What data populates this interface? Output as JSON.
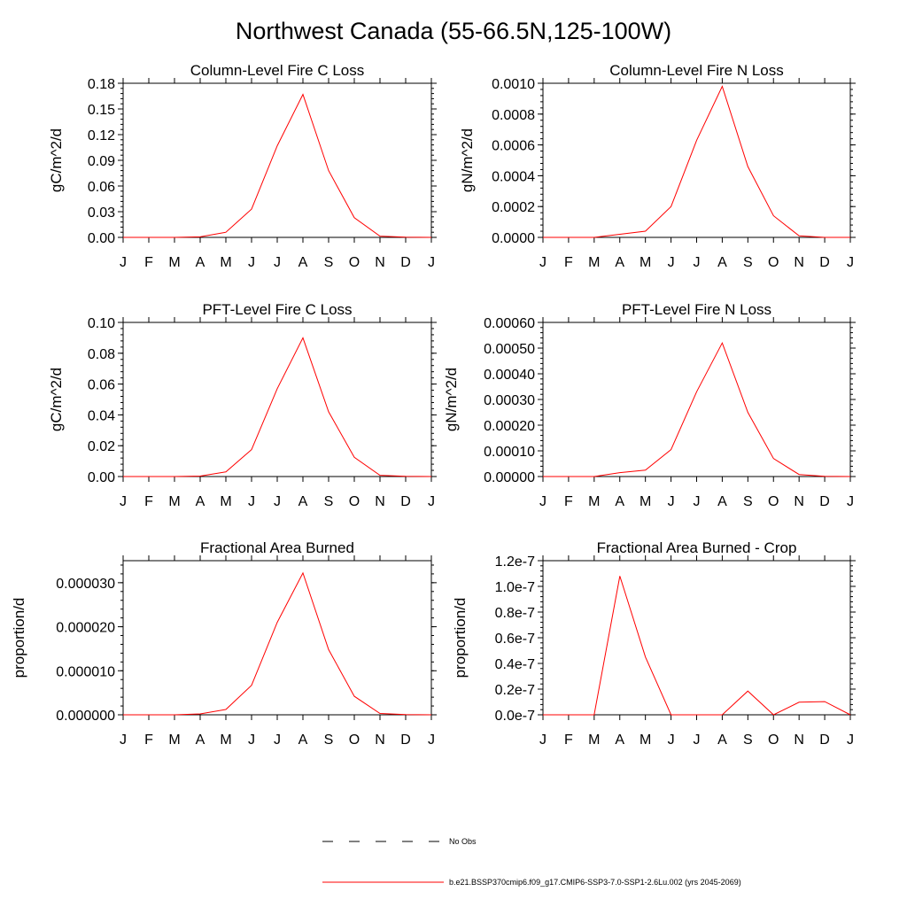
{
  "figure_title": "Northwest Canada (55-66.5N,125-100W)",
  "colors": {
    "model": "#ff0000",
    "obs": "#000000",
    "axis": "#000000"
  },
  "chart_data": [
    {
      "type": "line",
      "title": "Column-Level Fire C Loss",
      "ylabel": "gC/m^2/d",
      "ylim": [
        0,
        0.18
      ],
      "yticks": [
        0,
        0.03,
        0.06,
        0.09,
        0.12,
        0.15,
        0.18
      ],
      "ytick_labels": [
        "0.00",
        "0.03",
        "0.06",
        "0.09",
        "0.12",
        "0.15",
        "0.18"
      ],
      "x": [
        "J",
        "F",
        "M",
        "A",
        "M",
        "J",
        "J",
        "A",
        "S",
        "O",
        "N",
        "D",
        "J"
      ],
      "series": [
        {
          "values": [
            0,
            0,
            0,
            0.0006,
            0.006,
            0.033,
            0.107,
            0.167,
            0.078,
            0.023,
            0.0015,
            0.0002,
            0
          ]
        }
      ]
    },
    {
      "type": "line",
      "title": "Column-Level Fire N Loss",
      "ylabel": "gN/m^2/d",
      "ylim": [
        0,
        0.001
      ],
      "yticks": [
        0,
        0.0002,
        0.0004,
        0.0006,
        0.0008,
        0.001
      ],
      "ytick_labels": [
        "0.0000",
        "0.0002",
        "0.0004",
        "0.0006",
        "0.0008",
        "0.0010"
      ],
      "x": [
        "J",
        "F",
        "M",
        "A",
        "M",
        "J",
        "J",
        "A",
        "S",
        "O",
        "N",
        "D",
        "J"
      ],
      "series": [
        {
          "values": [
            0,
            0,
            0,
            2e-05,
            4e-05,
            0.0002,
            0.00063,
            0.00098,
            0.00046,
            0.00014,
            1e-05,
            0,
            0
          ]
        }
      ]
    },
    {
      "type": "line",
      "title": "PFT-Level Fire C Loss",
      "ylabel": "gC/m^2/d",
      "ylim": [
        0,
        0.1
      ],
      "yticks": [
        0,
        0.02,
        0.04,
        0.06,
        0.08,
        0.1
      ],
      "ytick_labels": [
        "0.00",
        "0.02",
        "0.04",
        "0.06",
        "0.08",
        "0.10"
      ],
      "x": [
        "J",
        "F",
        "M",
        "A",
        "M",
        "J",
        "J",
        "A",
        "S",
        "O",
        "N",
        "D",
        "J"
      ],
      "series": [
        {
          "values": [
            0,
            0,
            0,
            0.0003,
            0.003,
            0.0175,
            0.057,
            0.09,
            0.042,
            0.0125,
            0.0008,
            0.0001,
            0
          ]
        }
      ]
    },
    {
      "type": "line",
      "title": "PFT-Level Fire N Loss",
      "ylabel": "gN/m^2/d",
      "ylim": [
        0,
        0.0006
      ],
      "yticks": [
        0,
        0.0001,
        0.0002,
        0.0003,
        0.0004,
        0.0005,
        0.0006
      ],
      "ytick_labels": [
        "0.00000",
        "0.00010",
        "0.00020",
        "0.00030",
        "0.00040",
        "0.00050",
        "0.00060"
      ],
      "x": [
        "J",
        "F",
        "M",
        "A",
        "M",
        "J",
        "J",
        "A",
        "S",
        "O",
        "N",
        "D",
        "J"
      ],
      "series": [
        {
          "values": [
            0,
            0,
            0,
            1.5e-05,
            2.5e-05,
            0.000105,
            0.00033,
            0.00052,
            0.00025,
            7e-05,
            8e-06,
            1e-06,
            0
          ]
        }
      ]
    },
    {
      "type": "line",
      "title": "Fractional Area Burned",
      "ylabel": "proportion/d",
      "ylim": [
        0,
        3.5e-05
      ],
      "yticks": [
        0,
        1e-05,
        2e-05,
        3e-05
      ],
      "ytick_labels": [
        "0.000000",
        "0.000010",
        "0.000020",
        "0.000030"
      ],
      "x": [
        "J",
        "F",
        "M",
        "A",
        "M",
        "J",
        "J",
        "A",
        "S",
        "O",
        "N",
        "D",
        "J"
      ],
      "series": [
        {
          "values": [
            0,
            0,
            0,
            2e-07,
            1.2e-06,
            6.7e-06,
            2.1e-05,
            3.22e-05,
            1.48e-05,
            4.2e-06,
            3e-07,
            5e-08,
            0
          ]
        }
      ]
    },
    {
      "type": "line",
      "title": "Fractional Area Burned - Crop",
      "ylabel": "proportion/d",
      "ylim": [
        0,
        1.2e-07
      ],
      "yticks": [
        0,
        2e-08,
        4e-08,
        6e-08,
        8e-08,
        1e-07,
        1.2e-07
      ],
      "ytick_labels": [
        "0.0e-7",
        "0.2e-7",
        "0.4e-7",
        "0.6e-7",
        "0.8e-7",
        "1.0e-7",
        "1.2e-7"
      ],
      "x": [
        "J",
        "F",
        "M",
        "A",
        "M",
        "J",
        "J",
        "A",
        "S",
        "O",
        "N",
        "D",
        "J"
      ],
      "series": [
        {
          "values": [
            0,
            0,
            0,
            1.08e-07,
            4.5e-08,
            0,
            0,
            0,
            1.85e-08,
            0,
            9.8e-09,
            1.03e-08,
            0
          ]
        }
      ]
    }
  ],
  "legend": [
    {
      "label": "No Obs",
      "style": "dashed"
    },
    {
      "label": "b.e21.BSSP370cmip6.f09_g17.CMIP6-SSP3-7.0-SSP1-2.6Lu.002 (yrs 2045-2069)",
      "style": "solid"
    }
  ]
}
